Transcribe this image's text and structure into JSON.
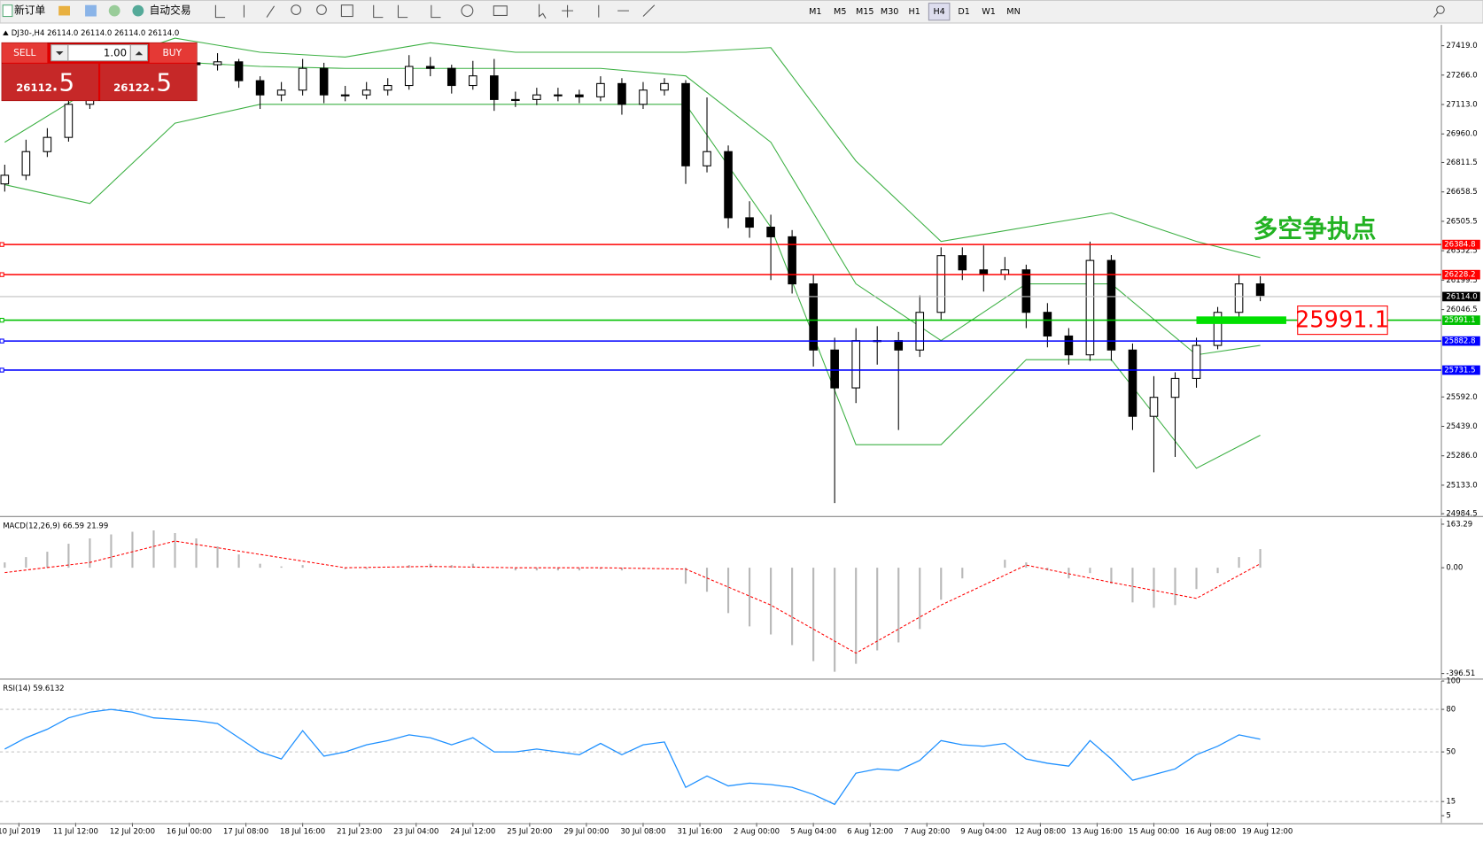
{
  "toolbar": {
    "new_order": "新订单",
    "auto_trading": "自动交易",
    "timeframes": [
      "M1",
      "M5",
      "M15",
      "M30",
      "H1",
      "H4",
      "D1",
      "W1",
      "MN"
    ],
    "active_timeframe": 5
  },
  "trade_panel": {
    "sell": "SELL",
    "buy": "BUY",
    "lots": "1.00",
    "sell_price": {
      "main": "26112",
      "tail": ".5"
    },
    "buy_price": {
      "main": "26122",
      "tail": ".5"
    }
  },
  "chart_data": [
    {
      "type": "candlestick",
      "title": "DJ30-,H4  26114.0 26114.0 26114.0 26114.0",
      "ylim": [
        24975,
        27527
      ],
      "yticks": [
        {
          "value": 27419,
          "label": "27419.0"
        },
        {
          "value": 27266,
          "label": "27266.0"
        },
        {
          "value": 27113,
          "label": "27113.0"
        },
        {
          "value": 26960,
          "label": "26960.0"
        },
        26811.5,
        26658.5,
        26505.5,
        26352.5,
        26199.5,
        26046.5,
        {
          "value": 25592,
          "label": "25592.0"
        },
        {
          "value": 25439,
          "label": "25439.0"
        },
        {
          "value": 25286,
          "label": "25286.0"
        },
        {
          "value": 25133,
          "label": "25133.0"
        },
        24984.5
      ],
      "x_labels": [
        "10 Jul 2019",
        "11 Jul 12:00",
        "12 Jul 20:00",
        "16 Jul 00:00",
        "17 Jul 08:00",
        "18 Jul 16:00",
        "21 Jul 23:00",
        "23 Jul 04:00",
        "24 Jul 12:00",
        "25 Jul 20:00",
        "29 Jul 00:00",
        "30 Jul 08:00",
        "31 Jul 16:00",
        "2 Aug 00:00",
        "5 Aug 04:00",
        "6 Aug 12:00",
        "7 Aug 20:00",
        "9 Aug 04:00",
        "12 Aug 08:00",
        "13 Aug 16:00",
        "15 Aug 00:00",
        "16 Aug 08:00",
        "19 Aug 12:00"
      ],
      "candles": [
        [
          26700,
          26800,
          26660,
          26745
        ],
        [
          26745,
          26930,
          26720,
          26868
        ],
        [
          26868,
          26990,
          26840,
          26942
        ],
        [
          26942,
          27150,
          26920,
          27114
        ],
        [
          27114,
          27230,
          27090,
          27188
        ],
        [
          27188,
          27290,
          27160,
          27252
        ],
        [
          27252,
          27350,
          27220,
          27311
        ],
        [
          27311,
          27380,
          27290,
          27335
        ],
        [
          27335,
          27370,
          27300,
          27330
        ],
        [
          27330,
          27360,
          27280,
          27320
        ],
        [
          27320,
          27380,
          27290,
          27335
        ],
        [
          27335,
          27350,
          27200,
          27237
        ],
        [
          27237,
          27260,
          27090,
          27163
        ],
        [
          27163,
          27230,
          27130,
          27188
        ],
        [
          27188,
          27350,
          27160,
          27301
        ],
        [
          27301,
          27330,
          27120,
          27163
        ],
        [
          27163,
          27210,
          27130,
          27163
        ],
        [
          27163,
          27230,
          27140,
          27188
        ],
        [
          27188,
          27250,
          27160,
          27212
        ],
        [
          27212,
          27370,
          27190,
          27311
        ],
        [
          27311,
          27360,
          27260,
          27301
        ],
        [
          27301,
          27320,
          27170,
          27212
        ],
        [
          27212,
          27340,
          27190,
          27262
        ],
        [
          27262,
          27350,
          27080,
          27139
        ],
        [
          27139,
          27180,
          27100,
          27139
        ],
        [
          27139,
          27200,
          27110,
          27163
        ],
        [
          27163,
          27200,
          27130,
          27163
        ],
        [
          27163,
          27190,
          27120,
          27153
        ],
        [
          27153,
          27260,
          27130,
          27222
        ],
        [
          27222,
          27250,
          27060,
          27114
        ],
        [
          27114,
          27230,
          27090,
          27188
        ],
        [
          27188,
          27250,
          27160,
          27222
        ],
        [
          27222,
          27240,
          26700,
          26794
        ],
        [
          26794,
          27150,
          26760,
          26868
        ],
        [
          26868,
          26900,
          26470,
          26524
        ],
        [
          26524,
          26610,
          26420,
          26475
        ],
        [
          26475,
          26540,
          26200,
          26425
        ],
        [
          26425,
          26460,
          26130,
          26180
        ],
        [
          26180,
          26230,
          25750,
          25836
        ],
        [
          25836,
          25900,
          25040,
          25639
        ],
        [
          25639,
          25950,
          25560,
          25885
        ],
        [
          25885,
          25960,
          25760,
          25885
        ],
        [
          25885,
          25930,
          25420,
          25836
        ],
        [
          25836,
          26120,
          25800,
          26032
        ],
        [
          26032,
          26370,
          25990,
          26327
        ],
        [
          26327,
          26370,
          26200,
          26253
        ],
        [
          26253,
          26380,
          26140,
          26229
        ],
        [
          26229,
          26320,
          26200,
          26253
        ],
        [
          26253,
          26280,
          25950,
          26032
        ],
        [
          26032,
          26080,
          25850,
          25909
        ],
        [
          25909,
          25950,
          25760,
          25811
        ],
        [
          25811,
          26400,
          25780,
          26302
        ],
        [
          26302,
          26330,
          25780,
          25836
        ],
        [
          25836,
          25870,
          25420,
          25491
        ],
        [
          25491,
          25700,
          25200,
          25590
        ],
        [
          25590,
          25720,
          25280,
          25688
        ],
        [
          25688,
          25900,
          25640,
          25860
        ],
        [
          25860,
          26060,
          25840,
          26032
        ],
        [
          26032,
          26230,
          26000,
          26180
        ],
        [
          26180,
          26220,
          26090,
          26120
        ]
      ],
      "bollinger": {
        "color": "#3cb043",
        "x": [
          0,
          4,
          8,
          12,
          16,
          20,
          24,
          28,
          32,
          36,
          40,
          44,
          48,
          52,
          56,
          59
        ],
        "upper": [
          27139,
          27311,
          27458,
          27385,
          27360,
          27434,
          27385,
          27385,
          27385,
          27409,
          26819,
          26401,
          26475,
          26549,
          26401,
          26317
        ],
        "middle": [
          26917,
          27188,
          27335,
          27311,
          27301,
          27301,
          27301,
          27301,
          27262,
          26917,
          26180,
          25885,
          26180,
          26180,
          25811,
          25860
        ],
        "lower": [
          26696,
          26598,
          27016,
          27114,
          27114,
          27114,
          27114,
          27114,
          27114,
          26475,
          25344,
          25344,
          25786,
          25786,
          25221,
          25393
        ]
      },
      "levels": [
        {
          "value": 26384.8,
          "color": "#ff0000"
        },
        {
          "value": 26228.2,
          "color": "#ff0000"
        },
        {
          "value": 25991.1,
          "color": "#00c000"
        },
        {
          "value": 25882.8,
          "color": "#0000ff"
        },
        {
          "value": 25731.5,
          "color": "#0000ff"
        }
      ],
      "current_price": {
        "value": 26114,
        "label": "26114.0"
      },
      "annotation": "多空争执点",
      "highlight_level": 2
    },
    {
      "type": "macd",
      "title": "MACD(12,26,9) 66.59 21.99",
      "ylim": [
        -414,
        185
      ],
      "yticks": [
        163.29,
        {
          "value": 0,
          "label": "0.00"
        },
        -396.51
      ],
      "values": [
        20,
        40,
        60,
        90,
        110,
        125,
        135,
        140,
        130,
        110,
        80,
        50,
        15,
        5,
        10,
        0,
        -5,
        -5,
        0,
        10,
        15,
        10,
        15,
        0,
        -10,
        -10,
        -10,
        -10,
        -5,
        -10,
        -5,
        0,
        -60,
        -90,
        -170,
        -220,
        -250,
        -290,
        -350,
        -390,
        -360,
        -310,
        -280,
        -230,
        -120,
        -40,
        0,
        30,
        20,
        -10,
        -40,
        -20,
        -60,
        -130,
        -150,
        -140,
        -80,
        -20,
        40,
        70
      ],
      "color": "#b8b8b8",
      "signal": {
        "color": "#ff0000",
        "x": [
          0,
          4,
          8,
          12,
          16,
          20,
          24,
          28,
          32,
          36,
          40,
          44,
          48,
          52,
          56,
          59
        ],
        "values": [
          -18,
          20,
          100,
          50,
          0,
          5,
          0,
          0,
          -5,
          -140,
          -320,
          -140,
          10,
          -55,
          -115,
          15
        ]
      }
    },
    {
      "type": "line",
      "title": "RSI(14) 59.6132",
      "ylim": [
        0,
        100
      ],
      "yticks": [
        100,
        80,
        50,
        15,
        5
      ],
      "levels": [
        80,
        50,
        15
      ],
      "color": "#1e90ff",
      "values": [
        52,
        60,
        66,
        74,
        78,
        80,
        78,
        74,
        73,
        72,
        70,
        60,
        50,
        45,
        65,
        47,
        50,
        55,
        58,
        62,
        60,
        55,
        60,
        50,
        50,
        52,
        50,
        48,
        56,
        48,
        55,
        57,
        25,
        33,
        26,
        28,
        27,
        25,
        20,
        13,
        35,
        38,
        37,
        44,
        58,
        55,
        54,
        56,
        45,
        42,
        40,
        58,
        45,
        30,
        34,
        38,
        48,
        54,
        62,
        59
      ]
    }
  ]
}
